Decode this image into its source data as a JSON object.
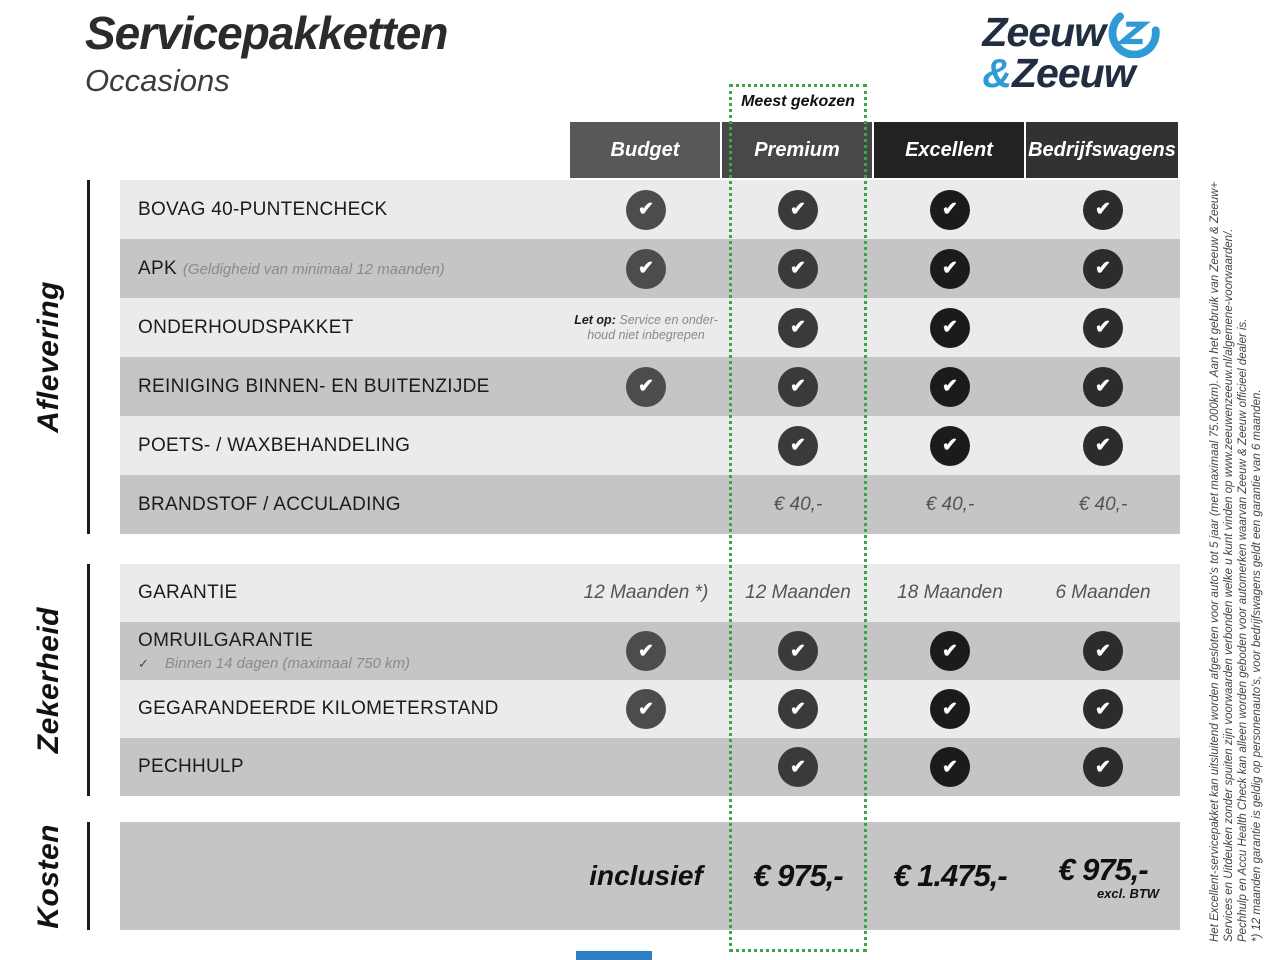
{
  "header": {
    "title": "Servicepakketten",
    "subtitle": "Occasions"
  },
  "logo": {
    "line1": "Zeeuw",
    "amp": "&",
    "line2": "Zeeuw",
    "navy": "#212d40",
    "blue": "#2e9bd6"
  },
  "highlight": {
    "label": "Meest gekozen",
    "border_color": "#3ba54a"
  },
  "columns": [
    {
      "label": "Budget",
      "header_bg": "#58585a",
      "check_bg": "#4c4c4e"
    },
    {
      "label": "Premium",
      "header_bg": "#48484a",
      "check_bg": "#3a3a3c"
    },
    {
      "label": "Excellent",
      "header_bg": "#222223",
      "check_bg": "#1b1b1c"
    },
    {
      "label": "Bedrijfswagens",
      "header_bg": "#323234",
      "check_bg": "#2c2c2e"
    }
  ],
  "sections": [
    {
      "name": "Aflevering",
      "rows": [
        {
          "label": "BOVAG 40-PUNTENCHECK",
          "cells": [
            "check",
            "check",
            "check",
            "check"
          ]
        },
        {
          "label": "APK",
          "note_inline": "(Geldigheid van minimaal 12 maanden)",
          "cells": [
            "check",
            "check",
            "check",
            "check"
          ]
        },
        {
          "label": "ONDERHOUDSPAKKET",
          "note_bold": "Let op:",
          "note_text": "Service en onder-houd niet inbegrepen",
          "cells": [
            "note",
            "check",
            "check",
            "check"
          ]
        },
        {
          "label": "REINIGING BINNEN- EN BUITENZIJDE",
          "cells": [
            "check",
            "check",
            "check",
            "check"
          ]
        },
        {
          "label": "POETS- / WAXBEHANDELING",
          "cells": [
            "",
            "check",
            "check",
            "check"
          ]
        },
        {
          "label": "BRANDSTOF / ACCULADING",
          "cells": [
            "",
            "€ 40,-",
            "€ 40,-",
            "€ 40,-"
          ]
        }
      ]
    },
    {
      "name": "Zekerheid",
      "rows": [
        {
          "label": "GARANTIE",
          "cells": [
            "12 Maanden *)",
            "12 Maanden",
            "18 Maanden",
            "6 Maanden"
          ]
        },
        {
          "label": "OMRUILGARANTIE",
          "sub_check": "✓",
          "sub_text": "Binnen 14 dagen (maximaal 750 km)",
          "cells": [
            "check",
            "check",
            "check",
            "check"
          ]
        },
        {
          "label": "GEGARANDEERDE KILOMETERSTAND",
          "cells": [
            "check",
            "check",
            "check",
            "check"
          ]
        },
        {
          "label": "PECHHULP",
          "cells": [
            "",
            "check",
            "check",
            "check"
          ]
        }
      ]
    },
    {
      "name": "Kosten",
      "values": [
        "inclusief",
        "€ 975,-",
        "€ 1.475,-",
        "€ 975,-"
      ],
      "note": "excl. BTW"
    }
  ],
  "fineprint": [
    "Het Excellent-servicepakket kan uitsluitend worden afgesloten voor auto's tot 5 jaar (met maximaal 75.000km). Aan het gebruik van Zeeuw & Zeeuw+",
    "Services en Uitdeuken zonder spuiten zijn voorwaarden verbonden welke u kunt vinden op www.zeeuwenzeeuw.nl/algemene-voorwaarden/.",
    "Pechhulp en Accu Health Check kan alleen worden geboden voor automerken waarvan Zeeuw & Zeeuw officieel dealer is.",
    "*) 12 maanden garantie is geldig op personenauto's, voor bedrijfswagens geldt een garantie van 6 maanden."
  ]
}
